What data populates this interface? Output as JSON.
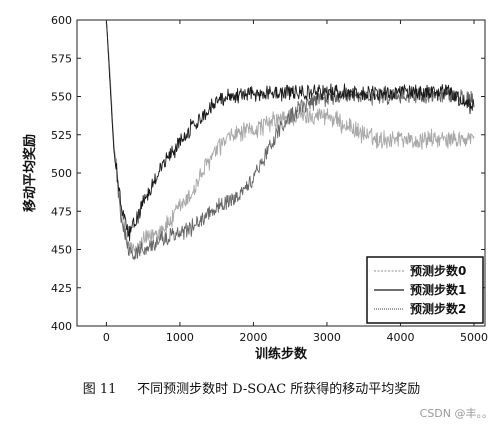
{
  "chart_data": {
    "type": "line",
    "title": "",
    "xlabel": "训练步数",
    "ylabel": "移动平均奖励",
    "xlim": [
      -400,
      5150
    ],
    "ylim": [
      400,
      600
    ],
    "xticks": [
      0,
      1000,
      2000,
      3000,
      4000,
      5000
    ],
    "yticks": [
      400,
      425,
      450,
      475,
      500,
      525,
      550,
      575,
      600
    ],
    "grid": false,
    "legend_position": "bottom-right",
    "series": [
      {
        "name": "预测步数0",
        "color": "#a8a8a8",
        "x": [
          0,
          50,
          100,
          200,
          300,
          400,
          500,
          600,
          700,
          800,
          900,
          1000,
          1100,
          1200,
          1300,
          1400,
          1500,
          1600,
          1700,
          1800,
          1900,
          2000,
          2100,
          2200,
          2300,
          2400,
          2500,
          2600,
          2700,
          2800,
          2900,
          3000,
          3100,
          3200,
          3300,
          3400,
          3500,
          3600,
          3700,
          3800,
          3900,
          4000,
          4100,
          4200,
          4300,
          4400,
          4500,
          4600,
          4700,
          4800,
          4900,
          5000
        ],
        "y": [
          600,
          565,
          520,
          475,
          452,
          448,
          455,
          458,
          462,
          465,
          470,
          478,
          482,
          490,
          500,
          508,
          515,
          520,
          524,
          526,
          527,
          528,
          530,
          532,
          534,
          535,
          536,
          537,
          537,
          538,
          538,
          538,
          535,
          532,
          530,
          528,
          525,
          523,
          522,
          522,
          523,
          524,
          522,
          520,
          521,
          523,
          522,
          521,
          523,
          522,
          521,
          524
        ]
      },
      {
        "name": "预测步数1",
        "color": "#1a1a1a",
        "x": [
          0,
          50,
          100,
          200,
          300,
          400,
          500,
          600,
          700,
          800,
          900,
          1000,
          1100,
          1200,
          1300,
          1400,
          1500,
          1600,
          1700,
          1800,
          1900,
          2000,
          2100,
          2200,
          2300,
          2400,
          2500,
          2600,
          2700,
          2800,
          2900,
          3000,
          3100,
          3200,
          3300,
          3400,
          3500,
          3600,
          3700,
          3800,
          3900,
          4000,
          4100,
          4200,
          4300,
          4400,
          4500,
          4600,
          4700,
          4800,
          4900,
          5000
        ],
        "y": [
          600,
          558,
          515,
          478,
          460,
          468,
          480,
          490,
          500,
          508,
          514,
          520,
          527,
          532,
          537,
          542,
          547,
          550,
          551,
          551,
          552,
          552,
          552,
          553,
          553,
          552,
          553,
          552,
          553,
          552,
          553,
          553,
          553,
          552,
          553,
          552,
          552,
          553,
          552,
          553,
          552,
          553,
          552,
          553,
          552,
          553,
          552,
          553,
          552,
          548,
          545,
          543
        ]
      },
      {
        "name": "预测步数2",
        "color": "#666666",
        "x": [
          0,
          50,
          100,
          200,
          300,
          400,
          500,
          600,
          700,
          800,
          900,
          1000,
          1100,
          1200,
          1300,
          1400,
          1500,
          1600,
          1700,
          1800,
          1900,
          2000,
          2100,
          2200,
          2300,
          2400,
          2500,
          2600,
          2700,
          2800,
          2900,
          3000,
          3100,
          3200,
          3300,
          3400,
          3500,
          3600,
          3700,
          3800,
          3900,
          4000,
          4100,
          4200,
          4300,
          4400,
          4500,
          4600,
          4700,
          4800,
          4900,
          5000
        ],
        "y": [
          600,
          560,
          518,
          472,
          450,
          447,
          450,
          452,
          455,
          458,
          459,
          460,
          462,
          466,
          470,
          474,
          477,
          480,
          482,
          485,
          490,
          497,
          506,
          515,
          524,
          531,
          537,
          541,
          544,
          546,
          548,
          549,
          550,
          550,
          550,
          551,
          550,
          550,
          551,
          550,
          550,
          551,
          550,
          551,
          550,
          551,
          550,
          551,
          550,
          550,
          549,
          548
        ]
      }
    ]
  },
  "caption": {
    "figure_number": "图 11",
    "text": "不同预测步数时 D-SOAC 所获得的移动平均奖励"
  },
  "watermark": "CSDN @丰。。"
}
